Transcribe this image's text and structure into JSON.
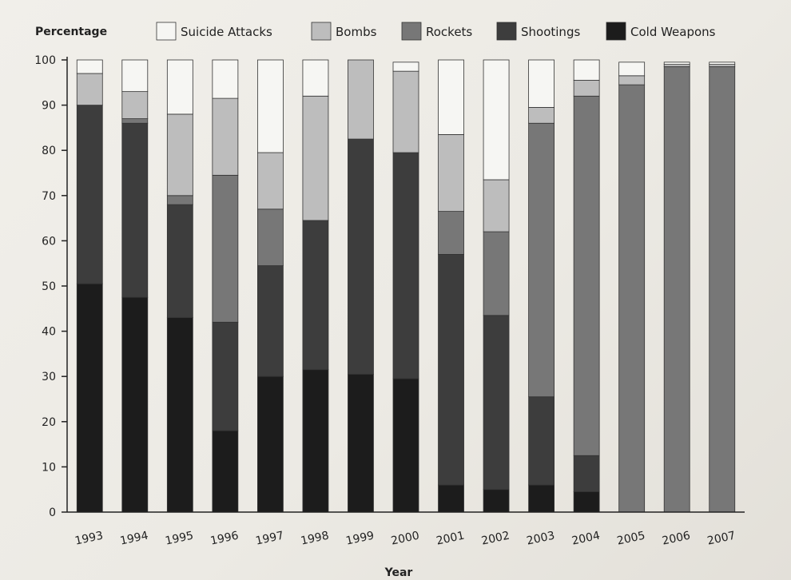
{
  "chart_data": {
    "type": "bar",
    "stacked": true,
    "ylabel": "Percentage",
    "xlabel": "Year",
    "ylim": [
      0,
      100
    ],
    "yticks": [
      0,
      10,
      20,
      30,
      40,
      50,
      60,
      70,
      80,
      90,
      100
    ],
    "grid": false,
    "legend_position": "top",
    "categories": [
      "1993",
      "1994",
      "1995",
      "1996",
      "1997",
      "1998",
      "1999",
      "2000",
      "2001",
      "2002",
      "2003",
      "2004",
      "2005",
      "2006",
      "2007"
    ],
    "series": [
      {
        "name": "Cold Weapons",
        "color": "#1c1c1c",
        "values": [
          50.5,
          47.5,
          43,
          18,
          30,
          31.5,
          30.5,
          29.5,
          6,
          5,
          6,
          4.5,
          0,
          0,
          0
        ]
      },
      {
        "name": "Shootings",
        "color": "#3d3d3d",
        "values": [
          39.5,
          38.5,
          25,
          24,
          24.5,
          33,
          52,
          50,
          51,
          38.5,
          19.5,
          8,
          0,
          0,
          0
        ]
      },
      {
        "name": "Rockets",
        "color": "#777777",
        "values": [
          0,
          1,
          2,
          32.5,
          12.5,
          0,
          0,
          0,
          9.5,
          18.5,
          60.5,
          79.5,
          94.5,
          98.5,
          98.5
        ]
      },
      {
        "name": "Bombs",
        "color": "#bdbdbd",
        "values": [
          7,
          6,
          18,
          17,
          12.5,
          27.5,
          17.5,
          18,
          17,
          11.5,
          3.5,
          3.5,
          2,
          0.5,
          0.5
        ]
      },
      {
        "name": "Suicide Attacks",
        "color": "#f6f6f3",
        "values": [
          3,
          7,
          12,
          8.5,
          20.5,
          8,
          0,
          2,
          16.5,
          26.5,
          10.5,
          4.5,
          3,
          0.5,
          0.5
        ]
      }
    ]
  }
}
